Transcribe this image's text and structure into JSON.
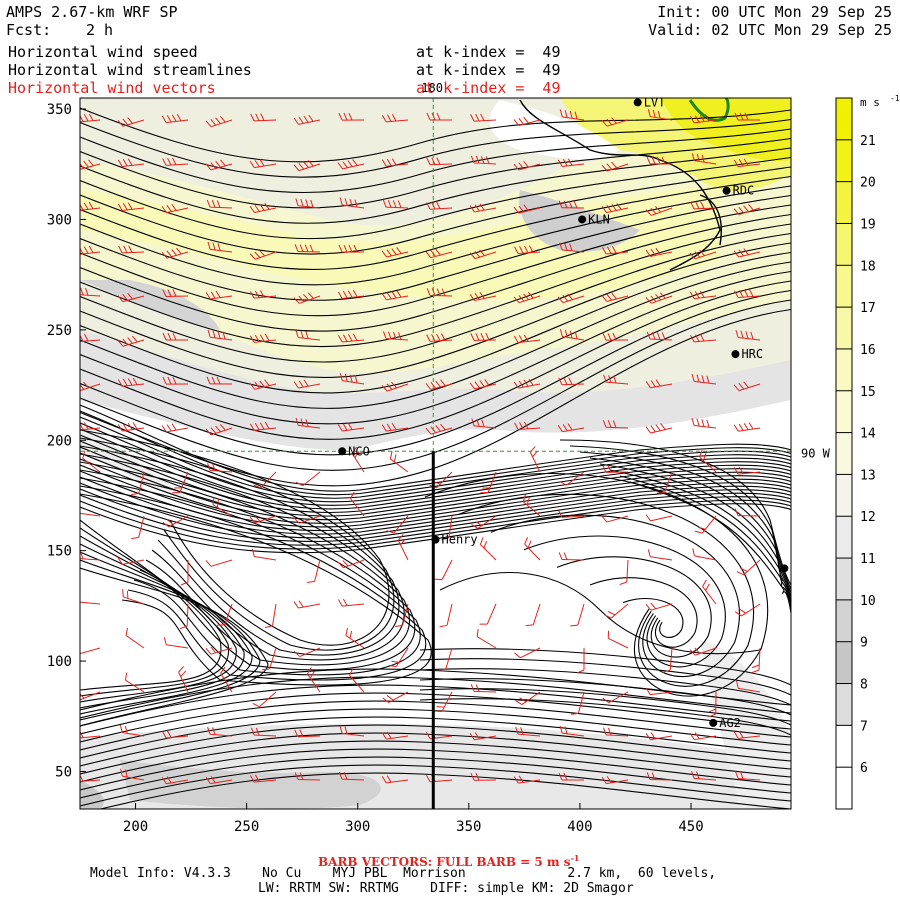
{
  "header": {
    "model": "AMPS 2.67-km WRF SP",
    "forecast_label": "Fcst:",
    "forecast_value": "2 h",
    "init": "Init: 00 UTC Mon 29 Sep 25",
    "valid": "Valid: 02 UTC Mon 29 Sep 25",
    "fields": [
      {
        "name": "Horizontal wind speed",
        "level": "at k-index =  49"
      },
      {
        "name": "Horizontal wind streamlines",
        "level": "at k-index =  49"
      },
      {
        "name": "Horizontal wind vectors",
        "level": "at k-index =  49"
      }
    ]
  },
  "colors": {
    "text": "#000000",
    "vectors": "#e8201c",
    "streamlines": "#000000",
    "grid": "#2e9e2e",
    "contour": "#1a8a1a"
  },
  "chart_data": {
    "type": "heatmap",
    "xlim": [
      175,
      495
    ],
    "ylim": [
      33,
      355
    ],
    "x_ticks": [
      200,
      250,
      300,
      350,
      400,
      450
    ],
    "y_ticks": [
      50,
      100,
      150,
      200,
      250,
      300,
      350
    ],
    "grid_labels": {
      "meridian": "180",
      "latitude_line": "90 W",
      "meridian_x": 334,
      "latitude_y": 195
    },
    "colorbar": {
      "unit": "m s",
      "unit_exp": "-1",
      "labels": [
        6,
        7,
        8,
        9,
        10,
        11,
        12,
        13,
        14,
        15,
        16,
        17,
        18,
        19,
        20,
        21
      ],
      "bands": [
        {
          "from": 5,
          "to": 6,
          "color": "#ffffff"
        },
        {
          "from": 6,
          "to": 7,
          "color": "#ffffff"
        },
        {
          "from": 7,
          "to": 8,
          "color": "#dcdcdc"
        },
        {
          "from": 8,
          "to": 9,
          "color": "#c6c6c6"
        },
        {
          "from": 9,
          "to": 10,
          "color": "#d2d2d2"
        },
        {
          "from": 10,
          "to": 11,
          "color": "#e0e0e0"
        },
        {
          "from": 11,
          "to": 12,
          "color": "#ebebeb"
        },
        {
          "from": 12,
          "to": 13,
          "color": "#f4f4ec"
        },
        {
          "from": 13,
          "to": 14,
          "color": "#f8f8de"
        },
        {
          "from": 14,
          "to": 15,
          "color": "#fafad2"
        },
        {
          "from": 15,
          "to": 16,
          "color": "#fafac0"
        },
        {
          "from": 16,
          "to": 17,
          "color": "#f8f8a8"
        },
        {
          "from": 17,
          "to": 18,
          "color": "#f8f890"
        },
        {
          "from": 18,
          "to": 19,
          "color": "#f6f670"
        },
        {
          "from": 19,
          "to": 20,
          "color": "#f4f440"
        },
        {
          "from": 20,
          "to": 21,
          "color": "#f2f214"
        },
        {
          "from": 21,
          "to": 22,
          "color": "#f0f000"
        }
      ]
    },
    "stations": [
      {
        "name": "NCO",
        "x": 293,
        "y": 195
      },
      {
        "name": "KLN",
        "x": 401,
        "y": 300
      },
      {
        "name": "RDC",
        "x": 466,
        "y": 313
      },
      {
        "name": "HRC",
        "x": 470,
        "y": 239
      },
      {
        "name": "Henry",
        "x": 335,
        "y": 155
      },
      {
        "name": "AG2",
        "x": 460,
        "y": 72
      },
      {
        "name": "LVT",
        "x": 426,
        "y": 353
      },
      {
        "name": "",
        "x": 492,
        "y": 142
      }
    ],
    "cross_section": {
      "x": 334,
      "y_from": 33,
      "y_to": 195
    }
  },
  "footer": {
    "barb_legend": "BARB VECTORS: FULL BARB = 5 m s",
    "barb_legend_exp": "-1",
    "model_info": "Model Info: V4.3.3    No Cu    MYJ PBL  Morrison             2.7 km,  60 levels,",
    "model_info2": "LW: RRTM SW: RRTMG    DIFF: simple KM: 2D Smagor"
  }
}
